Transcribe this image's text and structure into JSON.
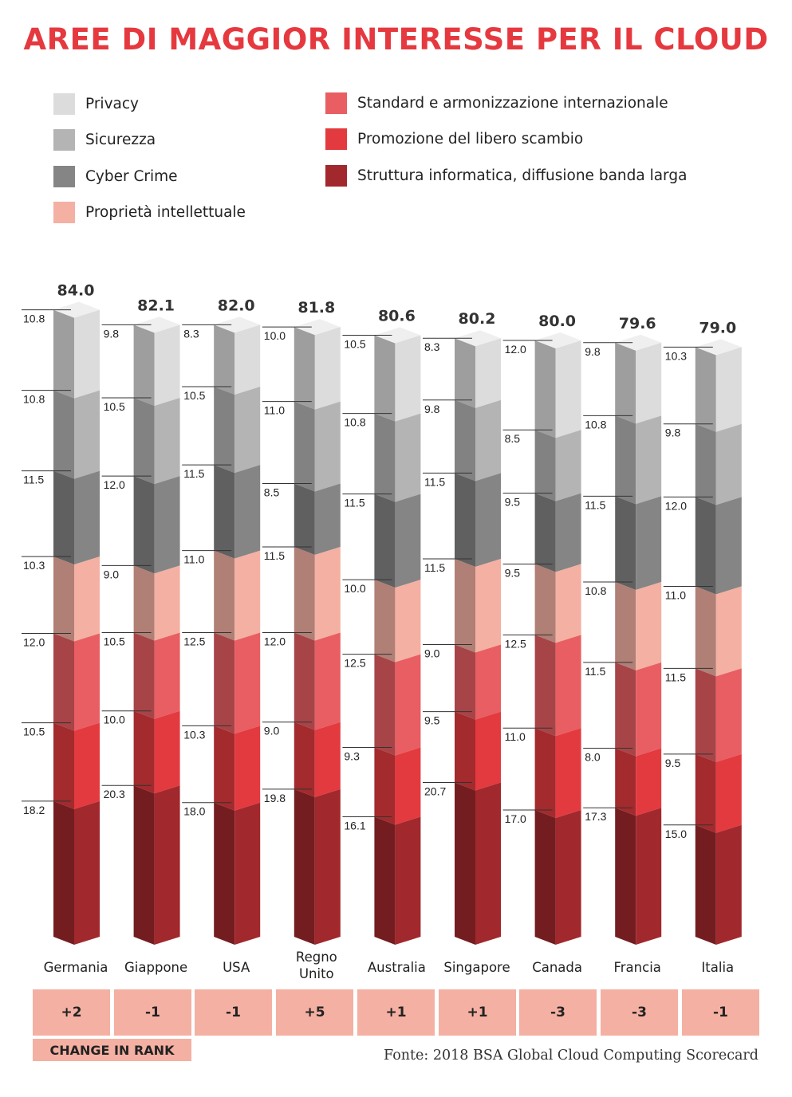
{
  "title": "AREE DI MAGGIOR INTERESSE PER IL CLOUD",
  "legend": [
    {
      "label": "Privacy",
      "color": "#dcdcdc"
    },
    {
      "label": "Sicurezza",
      "color": "#b4b4b4"
    },
    {
      "label": "Cyber Crime",
      "color": "#858585"
    },
    {
      "label": "Proprietà intellettuale",
      "color": "#f4b0a2"
    },
    {
      "label": "Standard e armonizzazione internazionale",
      "color": "#e85e62"
    },
    {
      "label": "Promozione del libero scambio",
      "color": "#e33a3f"
    },
    {
      "label": "Struttura informatica, diffusione banda larga",
      "color": "#a1282d"
    }
  ],
  "chart_data": {
    "type": "bar",
    "stacked": true,
    "categories": [
      "Germania",
      "Giappone",
      "USA",
      "Regno Unito",
      "Australia",
      "Singapore",
      "Canada",
      "Francia",
      "Italia"
    ],
    "totals": [
      "84.0",
      "82.1",
      "82.0",
      "81.8",
      "80.6",
      "80.2",
      "80.0",
      "79.6",
      "79.0"
    ],
    "series": [
      {
        "name": "Privacy",
        "values": [
          10.8,
          9.8,
          8.3,
          10.0,
          10.5,
          8.3,
          12.0,
          9.8,
          10.3
        ],
        "labels": [
          "10.8",
          "9.8",
          "8.3",
          "10.0",
          "10.5",
          "8.3",
          "12.0",
          "9.8",
          "10.3"
        ]
      },
      {
        "name": "Sicurezza",
        "values": [
          10.8,
          10.5,
          10.5,
          11.0,
          10.8,
          9.8,
          8.5,
          10.8,
          9.8
        ],
        "labels": [
          "10.8",
          "10.5",
          "10.5",
          "11.0",
          "10.8",
          "9.8",
          "8.5",
          "10.8",
          "9.8"
        ]
      },
      {
        "name": "Cyber Crime",
        "values": [
          11.5,
          12.0,
          11.5,
          8.5,
          11.5,
          11.5,
          9.5,
          11.5,
          12.0
        ],
        "labels": [
          "11.5",
          "12.0",
          "11.5",
          "8.5",
          "11.5",
          "11.5",
          "9.5",
          "11.5",
          "12.0"
        ]
      },
      {
        "name": "Proprietà intellettuale",
        "values": [
          10.3,
          9.0,
          11.0,
          11.5,
          10.0,
          11.5,
          9.5,
          10.8,
          11.0
        ],
        "labels": [
          "10.3",
          "9.0",
          "11.0",
          "11.5",
          "10.0",
          "11.5",
          "9.5",
          "10.8",
          "11.0"
        ]
      },
      {
        "name": "Standard e armonizzazione internazionale",
        "values": [
          12.0,
          10.5,
          12.5,
          12.0,
          12.5,
          9.0,
          12.5,
          11.5,
          11.5
        ],
        "labels": [
          "12.0",
          "10.5",
          "12.5",
          "12.0",
          "12.5",
          "9.0",
          "12.5",
          "11.5",
          "11.5"
        ]
      },
      {
        "name": "Promozione del libero scambio",
        "values": [
          10.5,
          10.0,
          10.3,
          9.0,
          9.3,
          9.5,
          11.0,
          8.0,
          9.5
        ],
        "labels": [
          "10.5",
          "10.0",
          "10.3",
          "9.0",
          "9.3",
          "9.5",
          "11.0",
          "8.0",
          "9.5"
        ]
      },
      {
        "name": "Struttura informatica, diffusione banda larga",
        "values": [
          18.2,
          20.3,
          18.0,
          19.8,
          16.1,
          20.7,
          17.0,
          17.3,
          15.0
        ],
        "labels": [
          "18.2",
          "20.3",
          "18.0",
          "19.8",
          "16.1",
          "20.7",
          "17.0",
          "17.3",
          "15.0"
        ]
      }
    ]
  },
  "change_in_rank": {
    "label": "CHANGE IN RANK",
    "values": [
      "+2",
      "-1",
      "-1",
      "+5",
      "+1",
      "+1",
      "-3",
      "-3",
      "-1"
    ]
  },
  "source": "Fonte: 2018 BSA Global Cloud Computing Scorecard"
}
